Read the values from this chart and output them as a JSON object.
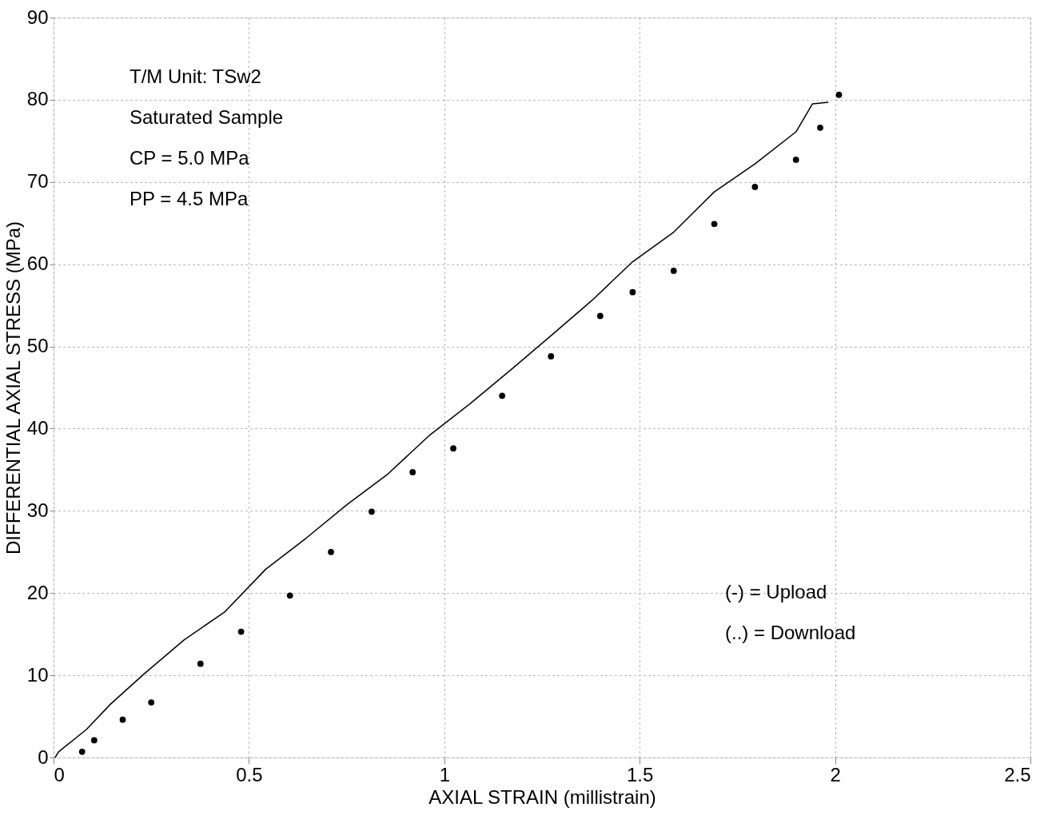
{
  "chart_data": {
    "type": "line",
    "xlabel": "AXIAL STRAIN (millistrain)",
    "ylabel": "DIFFERENTIAL AXIAL STRESS (MPa)",
    "xlim": [
      0,
      2.5
    ],
    "xticks": [
      0,
      0.5,
      1,
      1.5,
      2,
      2.5
    ],
    "ylim": [
      0,
      90
    ],
    "yticks": [
      0,
      10,
      20,
      30,
      40,
      50,
      60,
      70,
      80,
      90
    ],
    "grid": true,
    "annotations": [
      "T/M Unit:  TSw2",
      "Saturated Sample",
      "CP = 5.0 MPa",
      "PP = 4.5 MPa",
      "(-) = Upload",
      "(..) = Download"
    ],
    "series": [
      {
        "type": "line",
        "color": "#000000",
        "line_style": "solid",
        "x": [
          0.004,
          0.013,
          0.084,
          0.146,
          0.23,
          0.334,
          0.438,
          0.543,
          0.647,
          0.752,
          0.856,
          0.96,
          1.065,
          1.169,
          1.273,
          1.378,
          1.482,
          1.587,
          1.691,
          1.795,
          1.9,
          1.942,
          1.983
        ],
        "values": [
          0,
          0.7,
          3.4,
          6.5,
          10.1,
          14.3,
          17.7,
          22.9,
          26.7,
          30.8,
          34.5,
          39.1,
          43.0,
          47.1,
          51.3,
          55.6,
          60.3,
          63.9,
          68.8,
          72.2,
          76.1,
          79.5,
          79.7
        ]
      },
      {
        "type": "scatter",
        "color": "#000000",
        "marker": "circle",
        "x": [
          0.073,
          0.104,
          0.177,
          0.25,
          0.376,
          0.48,
          0.605,
          0.71,
          0.814,
          0.919,
          1.023,
          1.148,
          1.273,
          1.399,
          1.482,
          1.587,
          1.691,
          1.795,
          1.9,
          1.962,
          2.01
        ],
        "values": [
          0.7,
          2.1,
          4.6,
          6.7,
          11.4,
          15.3,
          19.7,
          25,
          29.9,
          34.7,
          37.6,
          44,
          48.8,
          53.7,
          56.6,
          59.2,
          64.9,
          69.4,
          72.7,
          76.6,
          80.6
        ]
      }
    ]
  }
}
